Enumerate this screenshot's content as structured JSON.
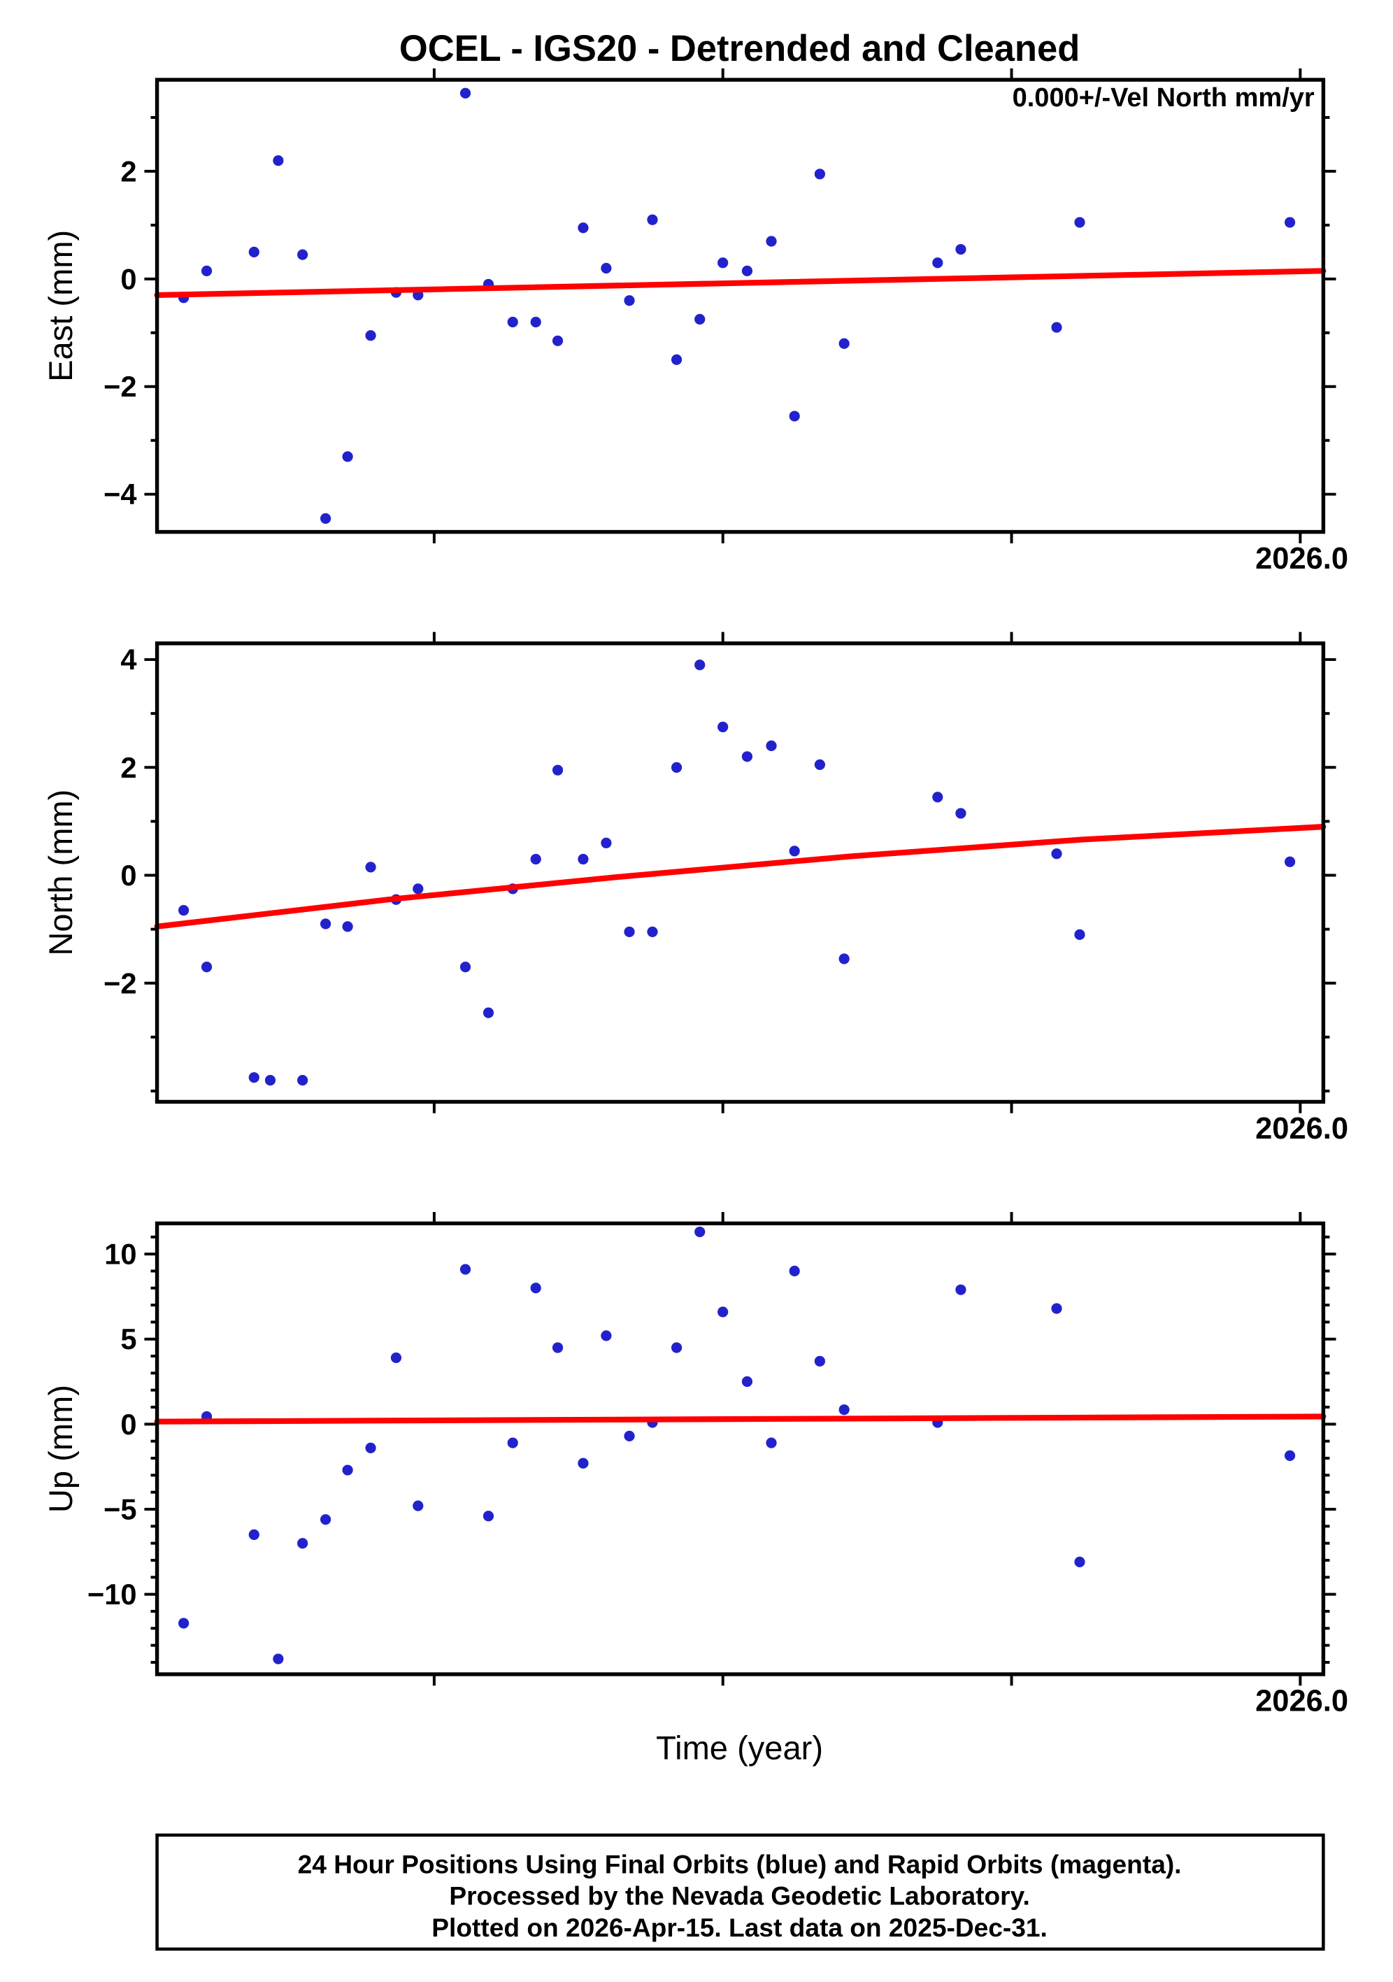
{
  "chart_data": {
    "type": "scatter",
    "title": "OCEL - IGS20 - Detrended and Cleaned",
    "annotation": "0.000+/-Vel North mm/yr",
    "xlabel": "Time (year)",
    "x_end_label": "2026.0",
    "xlim": [
      2025.01,
      2026.02
    ],
    "xticks": [
      2025.25,
      2025.5,
      2025.75,
      2026.0
    ],
    "point_color": "#2222cc",
    "trend_color": "#ff0000",
    "panels": [
      {
        "key": "east",
        "ylabel": "East (mm)",
        "ylim": [
          -4.7,
          3.7
        ],
        "yticks": [
          2,
          0,
          -2,
          -4
        ],
        "points": [
          [
            2025.033,
            -0.35
          ],
          [
            2025.053,
            0.15
          ],
          [
            2025.094,
            0.5
          ],
          [
            2025.115,
            2.2
          ],
          [
            2025.136,
            0.45
          ],
          [
            2025.156,
            -4.45
          ],
          [
            2025.175,
            -3.3
          ],
          [
            2025.195,
            -1.05
          ],
          [
            2025.217,
            -0.25
          ],
          [
            2025.236,
            -0.3
          ],
          [
            2025.277,
            3.45
          ],
          [
            2025.297,
            -0.1
          ],
          [
            2025.318,
            -0.8
          ],
          [
            2025.338,
            -0.8
          ],
          [
            2025.357,
            -1.15
          ],
          [
            2025.379,
            0.95
          ],
          [
            2025.399,
            0.2
          ],
          [
            2025.419,
            -0.4
          ],
          [
            2025.439,
            1.1
          ],
          [
            2025.46,
            -1.5
          ],
          [
            2025.48,
            -0.75
          ],
          [
            2025.5,
            0.3
          ],
          [
            2025.521,
            0.15
          ],
          [
            2025.542,
            0.7
          ],
          [
            2025.562,
            -2.55
          ],
          [
            2025.584,
            1.95
          ],
          [
            2025.605,
            -1.2
          ],
          [
            2025.686,
            0.3
          ],
          [
            2025.706,
            0.55
          ],
          [
            2025.789,
            -0.9
          ],
          [
            2025.809,
            1.05
          ],
          [
            2025.991,
            1.05
          ]
        ],
        "trend": [
          [
            2025.01,
            -0.3
          ],
          [
            2026.02,
            0.15
          ]
        ]
      },
      {
        "key": "north",
        "ylabel": "North (mm)",
        "ylim": [
          -4.2,
          4.3
        ],
        "yticks": [
          4,
          2,
          0,
          -2
        ],
        "points": [
          [
            2025.033,
            -0.65
          ],
          [
            2025.053,
            -1.7
          ],
          [
            2025.094,
            -3.75
          ],
          [
            2025.108,
            -3.8
          ],
          [
            2025.136,
            -3.8
          ],
          [
            2025.156,
            -0.9
          ],
          [
            2025.175,
            -0.95
          ],
          [
            2025.195,
            0.15
          ],
          [
            2025.217,
            -0.45
          ],
          [
            2025.236,
            -0.25
          ],
          [
            2025.277,
            -1.7
          ],
          [
            2025.297,
            -2.55
          ],
          [
            2025.318,
            -0.25
          ],
          [
            2025.338,
            0.3
          ],
          [
            2025.357,
            1.95
          ],
          [
            2025.379,
            0.3
          ],
          [
            2025.399,
            0.6
          ],
          [
            2025.419,
            -1.05
          ],
          [
            2025.439,
            -1.05
          ],
          [
            2025.46,
            2.0
          ],
          [
            2025.48,
            3.9
          ],
          [
            2025.5,
            2.75
          ],
          [
            2025.521,
            2.2
          ],
          [
            2025.542,
            2.4
          ],
          [
            2025.562,
            0.45
          ],
          [
            2025.584,
            2.05
          ],
          [
            2025.605,
            -1.55
          ],
          [
            2025.686,
            1.45
          ],
          [
            2025.706,
            1.15
          ],
          [
            2025.789,
            0.4
          ],
          [
            2025.809,
            -1.1
          ],
          [
            2025.991,
            0.25
          ]
        ],
        "trend": [
          [
            2025.01,
            -0.95
          ],
          [
            2025.21,
            -0.45
          ],
          [
            2025.41,
            -0.03
          ],
          [
            2025.61,
            0.35
          ],
          [
            2025.81,
            0.66
          ],
          [
            2026.02,
            0.9
          ]
        ]
      },
      {
        "key": "up",
        "ylabel": "Up (mm)",
        "ylim": [
          -14.7,
          11.8
        ],
        "yticks": [
          10,
          5,
          0,
          -5,
          -10
        ],
        "points": [
          [
            2025.033,
            -11.7
          ],
          [
            2025.053,
            0.45
          ],
          [
            2025.094,
            -6.5
          ],
          [
            2025.115,
            -13.8
          ],
          [
            2025.136,
            -7.0
          ],
          [
            2025.156,
            -5.6
          ],
          [
            2025.175,
            -2.7
          ],
          [
            2025.195,
            -1.4
          ],
          [
            2025.217,
            3.9
          ],
          [
            2025.236,
            -4.8
          ],
          [
            2025.277,
            9.1
          ],
          [
            2025.297,
            -5.4
          ],
          [
            2025.318,
            -1.1
          ],
          [
            2025.338,
            8.0
          ],
          [
            2025.357,
            4.5
          ],
          [
            2025.379,
            -2.3
          ],
          [
            2025.399,
            5.2
          ],
          [
            2025.419,
            -0.7
          ],
          [
            2025.439,
            0.1
          ],
          [
            2025.46,
            4.5
          ],
          [
            2025.48,
            11.3
          ],
          [
            2025.5,
            6.6
          ],
          [
            2025.521,
            2.5
          ],
          [
            2025.542,
            -1.1
          ],
          [
            2025.562,
            9.0
          ],
          [
            2025.584,
            3.7
          ],
          [
            2025.605,
            0.85
          ],
          [
            2025.686,
            0.1
          ],
          [
            2025.706,
            7.9
          ],
          [
            2025.789,
            6.8
          ],
          [
            2025.809,
            -8.1
          ],
          [
            2025.991,
            -1.85
          ]
        ],
        "trend": [
          [
            2025.01,
            0.15
          ],
          [
            2026.02,
            0.45
          ]
        ]
      }
    ]
  },
  "footer": {
    "line1": "24 Hour Positions Using Final Orbits (blue) and Rapid Orbits (magenta).",
    "line2": "Processed by the Nevada Geodetic Laboratory.",
    "line3": "Plotted on 2026-Apr-15. Last data on 2025-Dec-31."
  }
}
